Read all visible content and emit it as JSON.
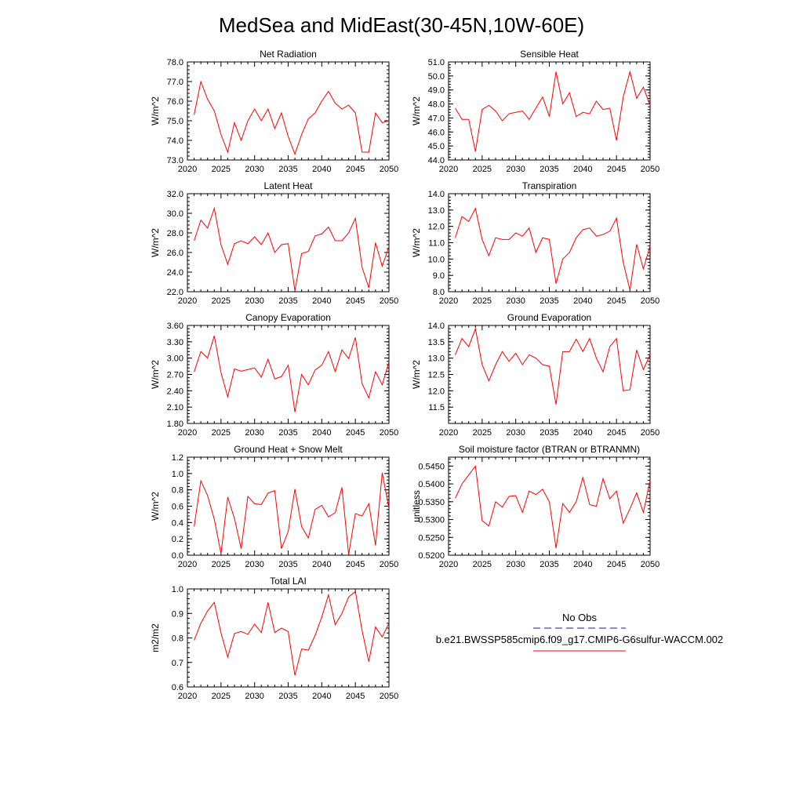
{
  "figure": {
    "title": "MedSea and MidEast(30-45N,10W-60E)"
  },
  "colors": {
    "model": "#ff0000",
    "obs": "#1a1a8c"
  },
  "legend": {
    "obs_label": "No Obs",
    "model_label": "b.e21.BWSSP585cmip6.f09_g17.CMIP6-G6sulfur-WACCM.002"
  },
  "chart_data": [
    {
      "type": "line",
      "title": "Net Radiation",
      "ylabel": "W/m^2",
      "xlim": [
        2020,
        2050
      ],
      "ylim": [
        73.0,
        78.0
      ],
      "xticks": [
        2020,
        2025,
        2030,
        2035,
        2040,
        2045,
        2050
      ],
      "yticks": [
        "73.0",
        "74.0",
        "75.0",
        "76.0",
        "77.0",
        "78.0"
      ],
      "x": [
        2021,
        2022,
        2023,
        2024,
        2025,
        2026,
        2027,
        2028,
        2029,
        2030,
        2031,
        2032,
        2033,
        2034,
        2035,
        2036,
        2037,
        2038,
        2039,
        2040,
        2041,
        2042,
        2043,
        2044,
        2045,
        2046,
        2047,
        2048,
        2049,
        2050
      ],
      "values": [
        75.3,
        77.0,
        76.1,
        75.5,
        74.3,
        73.4,
        74.9,
        74.0,
        75.0,
        75.6,
        75.0,
        75.6,
        74.6,
        75.4,
        74.2,
        73.3,
        74.3,
        75.1,
        75.4,
        76.0,
        76.5,
        75.9,
        75.6,
        75.8,
        75.4,
        73.4,
        73.4,
        75.4,
        74.9,
        75.0
      ],
      "grid": false
    },
    {
      "type": "line",
      "title": "Sensible Heat",
      "ylabel": "W/m^2",
      "xlim": [
        2020,
        2050
      ],
      "ylim": [
        44.0,
        51.0
      ],
      "xticks": [
        2020,
        2025,
        2030,
        2035,
        2040,
        2045,
        2050
      ],
      "yticks": [
        "44.0",
        "45.0",
        "46.0",
        "47.0",
        "48.0",
        "49.0",
        "50.0",
        "51.0"
      ],
      "x": [
        2021,
        2022,
        2023,
        2024,
        2025,
        2026,
        2027,
        2028,
        2029,
        2030,
        2031,
        2032,
        2033,
        2034,
        2035,
        2036,
        2037,
        2038,
        2039,
        2040,
        2041,
        2042,
        2043,
        2044,
        2045,
        2046,
        2047,
        2048,
        2049,
        2050
      ],
      "values": [
        47.7,
        46.9,
        46.9,
        44.6,
        47.6,
        47.9,
        47.5,
        46.8,
        47.3,
        47.4,
        47.5,
        46.9,
        47.7,
        48.5,
        47.1,
        50.3,
        48.0,
        48.8,
        47.1,
        47.4,
        47.3,
        48.2,
        47.6,
        47.7,
        45.4,
        48.5,
        50.3,
        48.4,
        49.2,
        47.9
      ],
      "grid": false
    },
    {
      "type": "line",
      "title": "Latent Heat",
      "ylabel": "W/m^2",
      "xlim": [
        2020,
        2050
      ],
      "ylim": [
        22.0,
        32.0
      ],
      "xticks": [
        2020,
        2025,
        2030,
        2035,
        2040,
        2045,
        2050
      ],
      "yticks": [
        "22.0",
        "24.0",
        "26.0",
        "28.0",
        "30.0",
        "32.0"
      ],
      "x": [
        2021,
        2022,
        2023,
        2024,
        2025,
        2026,
        2027,
        2028,
        2029,
        2030,
        2031,
        2032,
        2033,
        2034,
        2035,
        2036,
        2037,
        2038,
        2039,
        2040,
        2041,
        2042,
        2043,
        2044,
        2045,
        2046,
        2047,
        2048,
        2049,
        2050
      ],
      "values": [
        27.2,
        29.3,
        28.5,
        30.5,
        26.8,
        24.8,
        26.9,
        27.2,
        26.9,
        27.6,
        26.8,
        28.0,
        26.0,
        26.8,
        26.9,
        22.1,
        25.9,
        26.1,
        27.7,
        27.9,
        28.6,
        27.2,
        27.2,
        28.0,
        29.5,
        24.5,
        22.4,
        27.0,
        24.6,
        26.6
      ],
      "grid": false
    },
    {
      "type": "line",
      "title": "Transpiration",
      "ylabel": "W/m^2",
      "xlim": [
        2020,
        2050
      ],
      "ylim": [
        8.0,
        14.0
      ],
      "xticks": [
        2020,
        2025,
        2030,
        2035,
        2040,
        2045,
        2050
      ],
      "yticks": [
        "8.0",
        "9.0",
        "10.0",
        "11.0",
        "12.0",
        "13.0",
        "14.0"
      ],
      "x": [
        2021,
        2022,
        2023,
        2024,
        2025,
        2026,
        2027,
        2028,
        2029,
        2030,
        2031,
        2032,
        2033,
        2034,
        2035,
        2036,
        2037,
        2038,
        2039,
        2040,
        2041,
        2042,
        2043,
        2044,
        2045,
        2046,
        2047,
        2048,
        2049,
        2050
      ],
      "values": [
        11.3,
        12.6,
        12.3,
        13.1,
        11.2,
        10.2,
        11.3,
        11.2,
        11.2,
        11.6,
        11.4,
        11.9,
        10.4,
        11.3,
        11.2,
        8.5,
        10.0,
        10.4,
        11.3,
        11.8,
        11.9,
        11.4,
        11.5,
        11.7,
        12.5,
        9.8,
        8.1,
        10.9,
        9.4,
        10.8
      ],
      "grid": false
    },
    {
      "type": "line",
      "title": "Canopy Evaporation",
      "ylabel": "W/m^2",
      "xlim": [
        2020,
        2050
      ],
      "ylim": [
        1.8,
        3.6
      ],
      "xticks": [
        2020,
        2025,
        2030,
        2035,
        2040,
        2045,
        2050
      ],
      "yticks": [
        "1.80",
        "2.10",
        "2.40",
        "2.70",
        "3.00",
        "3.30",
        "3.60"
      ],
      "x": [
        2021,
        2022,
        2023,
        2024,
        2025,
        2026,
        2027,
        2028,
        2029,
        2030,
        2031,
        2032,
        2033,
        2034,
        2035,
        2036,
        2037,
        2038,
        2039,
        2040,
        2041,
        2042,
        2043,
        2044,
        2045,
        2046,
        2047,
        2048,
        2049,
        2050
      ],
      "values": [
        2.75,
        3.12,
        3.0,
        3.41,
        2.73,
        2.29,
        2.8,
        2.76,
        2.79,
        2.82,
        2.65,
        2.98,
        2.62,
        2.66,
        2.87,
        2.01,
        2.7,
        2.51,
        2.78,
        2.87,
        3.12,
        2.75,
        3.15,
        2.99,
        3.38,
        2.53,
        2.27,
        2.75,
        2.51,
        2.93
      ],
      "grid": false
    },
    {
      "type": "line",
      "title": "Ground Evaporation",
      "ylabel": "W/m^2",
      "xlim": [
        2020,
        2050
      ],
      "ylim": [
        11.0,
        14.0
      ],
      "xticks": [
        2020,
        2025,
        2030,
        2035,
        2040,
        2045,
        2050
      ],
      "yticks": [
        "11.5",
        "12.0",
        "12.5",
        "13.0",
        "13.5",
        "14.0"
      ],
      "x": [
        2021,
        2022,
        2023,
        2024,
        2025,
        2026,
        2027,
        2028,
        2029,
        2030,
        2031,
        2032,
        2033,
        2034,
        2035,
        2036,
        2037,
        2038,
        2039,
        2040,
        2041,
        2042,
        2043,
        2044,
        2045,
        2046,
        2047,
        2048,
        2049,
        2050
      ],
      "values": [
        13.1,
        13.6,
        13.35,
        13.9,
        12.8,
        12.3,
        12.8,
        13.2,
        12.9,
        13.15,
        12.8,
        13.1,
        13.0,
        12.8,
        12.75,
        11.58,
        13.2,
        13.2,
        13.58,
        13.2,
        13.6,
        13.0,
        12.58,
        13.35,
        13.6,
        12.0,
        12.03,
        13.25,
        12.65,
        13.1
      ],
      "grid": false
    },
    {
      "type": "line",
      "title": "Ground Heat + Snow Melt",
      "ylabel": "W/m^2",
      "xlim": [
        2020,
        2050
      ],
      "ylim": [
        0.0,
        1.2
      ],
      "xticks": [
        2020,
        2025,
        2030,
        2035,
        2040,
        2045,
        2050
      ],
      "yticks": [
        "0.0",
        "0.2",
        "0.4",
        "0.6",
        "0.8",
        "1.0",
        "1.2"
      ],
      "x": [
        2021,
        2022,
        2023,
        2024,
        2025,
        2026,
        2027,
        2028,
        2029,
        2030,
        2031,
        2032,
        2033,
        2034,
        2035,
        2036,
        2037,
        2038,
        2039,
        2040,
        2041,
        2042,
        2043,
        2044,
        2045,
        2046,
        2047,
        2048,
        2049,
        2050
      ],
      "values": [
        0.35,
        0.91,
        0.73,
        0.44,
        0.02,
        0.71,
        0.45,
        0.08,
        0.72,
        0.63,
        0.62,
        0.76,
        0.79,
        0.08,
        0.29,
        0.81,
        0.35,
        0.21,
        0.56,
        0.61,
        0.47,
        0.52,
        0.83,
        0.01,
        0.51,
        0.48,
        0.63,
        0.12,
        1.01,
        0.57
      ],
      "grid": false
    },
    {
      "type": "line",
      "title": "Soil moisture factor (BTRAN or BTRANMN)",
      "ylabel": "unitless",
      "xlim": [
        2020,
        2050
      ],
      "ylim": [
        0.52,
        0.5475
      ],
      "xticks": [
        2020,
        2025,
        2030,
        2035,
        2040,
        2045,
        2050
      ],
      "yticks": [
        "0.5200",
        "0.5250",
        "0.5300",
        "0.5350",
        "0.5400",
        "0.5450"
      ],
      "x": [
        2021,
        2022,
        2023,
        2024,
        2025,
        2026,
        2027,
        2028,
        2029,
        2030,
        2031,
        2032,
        2033,
        2034,
        2035,
        2036,
        2037,
        2038,
        2039,
        2040,
        2041,
        2042,
        2043,
        2044,
        2045,
        2046,
        2047,
        2048,
        2049,
        2050
      ],
      "values": [
        0.536,
        0.54,
        0.5425,
        0.545,
        0.5297,
        0.5282,
        0.535,
        0.5335,
        0.5365,
        0.5367,
        0.532,
        0.538,
        0.537,
        0.5385,
        0.535,
        0.522,
        0.5345,
        0.532,
        0.535,
        0.5418,
        0.5342,
        0.5337,
        0.5415,
        0.5358,
        0.538,
        0.529,
        0.533,
        0.5375,
        0.532,
        0.541
      ],
      "grid": false
    },
    {
      "type": "line",
      "title": "Total LAI",
      "ylabel": "m2/m2",
      "xlim": [
        2020,
        2050
      ],
      "ylim": [
        0.6,
        1.0
      ],
      "xticks": [
        2020,
        2025,
        2030,
        2035,
        2040,
        2045,
        2050
      ],
      "yticks": [
        "0.6",
        "0.7",
        "0.8",
        "0.9",
        "1.0"
      ],
      "x": [
        2021,
        2022,
        2023,
        2024,
        2025,
        2026,
        2027,
        2028,
        2029,
        2030,
        2031,
        2032,
        2033,
        2034,
        2035,
        2036,
        2037,
        2038,
        2039,
        2040,
        2041,
        2042,
        2043,
        2044,
        2045,
        2046,
        2047,
        2048,
        2049,
        2050
      ],
      "values": [
        0.79,
        0.86,
        0.91,
        0.945,
        0.82,
        0.722,
        0.818,
        0.826,
        0.815,
        0.856,
        0.822,
        0.945,
        0.822,
        0.84,
        0.826,
        0.647,
        0.755,
        0.75,
        0.81,
        0.885,
        0.976,
        0.854,
        0.9,
        0.967,
        0.99,
        0.83,
        0.703,
        0.845,
        0.804,
        0.86
      ],
      "grid": false
    }
  ]
}
